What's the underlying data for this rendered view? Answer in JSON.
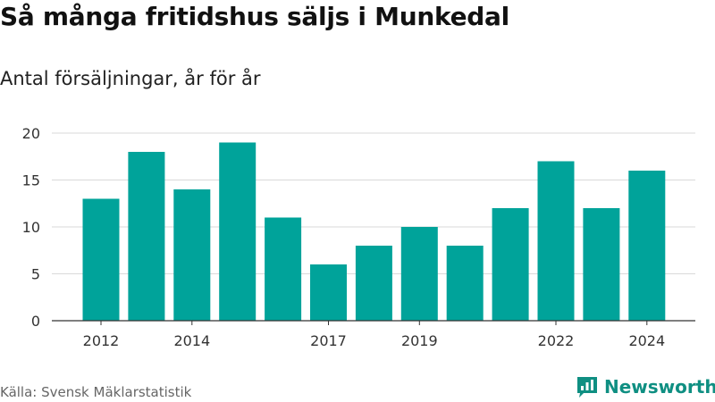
{
  "chart_data": {
    "type": "bar",
    "title": "Så många fritidshus säljs i Munkedal",
    "subtitle": "Antal försäljningar, år för år",
    "categories": [
      "2012",
      "2013",
      "2014",
      "2015",
      "2016",
      "2017",
      "2018",
      "2019",
      "2020",
      "2021",
      "2022",
      "2023",
      "2024"
    ],
    "x_tick_labels": [
      "2012",
      "2014",
      "2017",
      "2019",
      "2022",
      "2024"
    ],
    "values": [
      13,
      18,
      14,
      19,
      11,
      6,
      8,
      10,
      8,
      12,
      17,
      12,
      16
    ],
    "ylim": [
      0,
      20
    ],
    "y_ticks": [
      0,
      5,
      10,
      15,
      20
    ],
    "grid": "horizontal",
    "bar_color": "#00a39a"
  },
  "source": "Källa: Svensk Mäklarstatistik",
  "brand": {
    "name": "Newsworthy",
    "icon": "newsworthy-logo-icon",
    "color": "#0f8f82"
  }
}
